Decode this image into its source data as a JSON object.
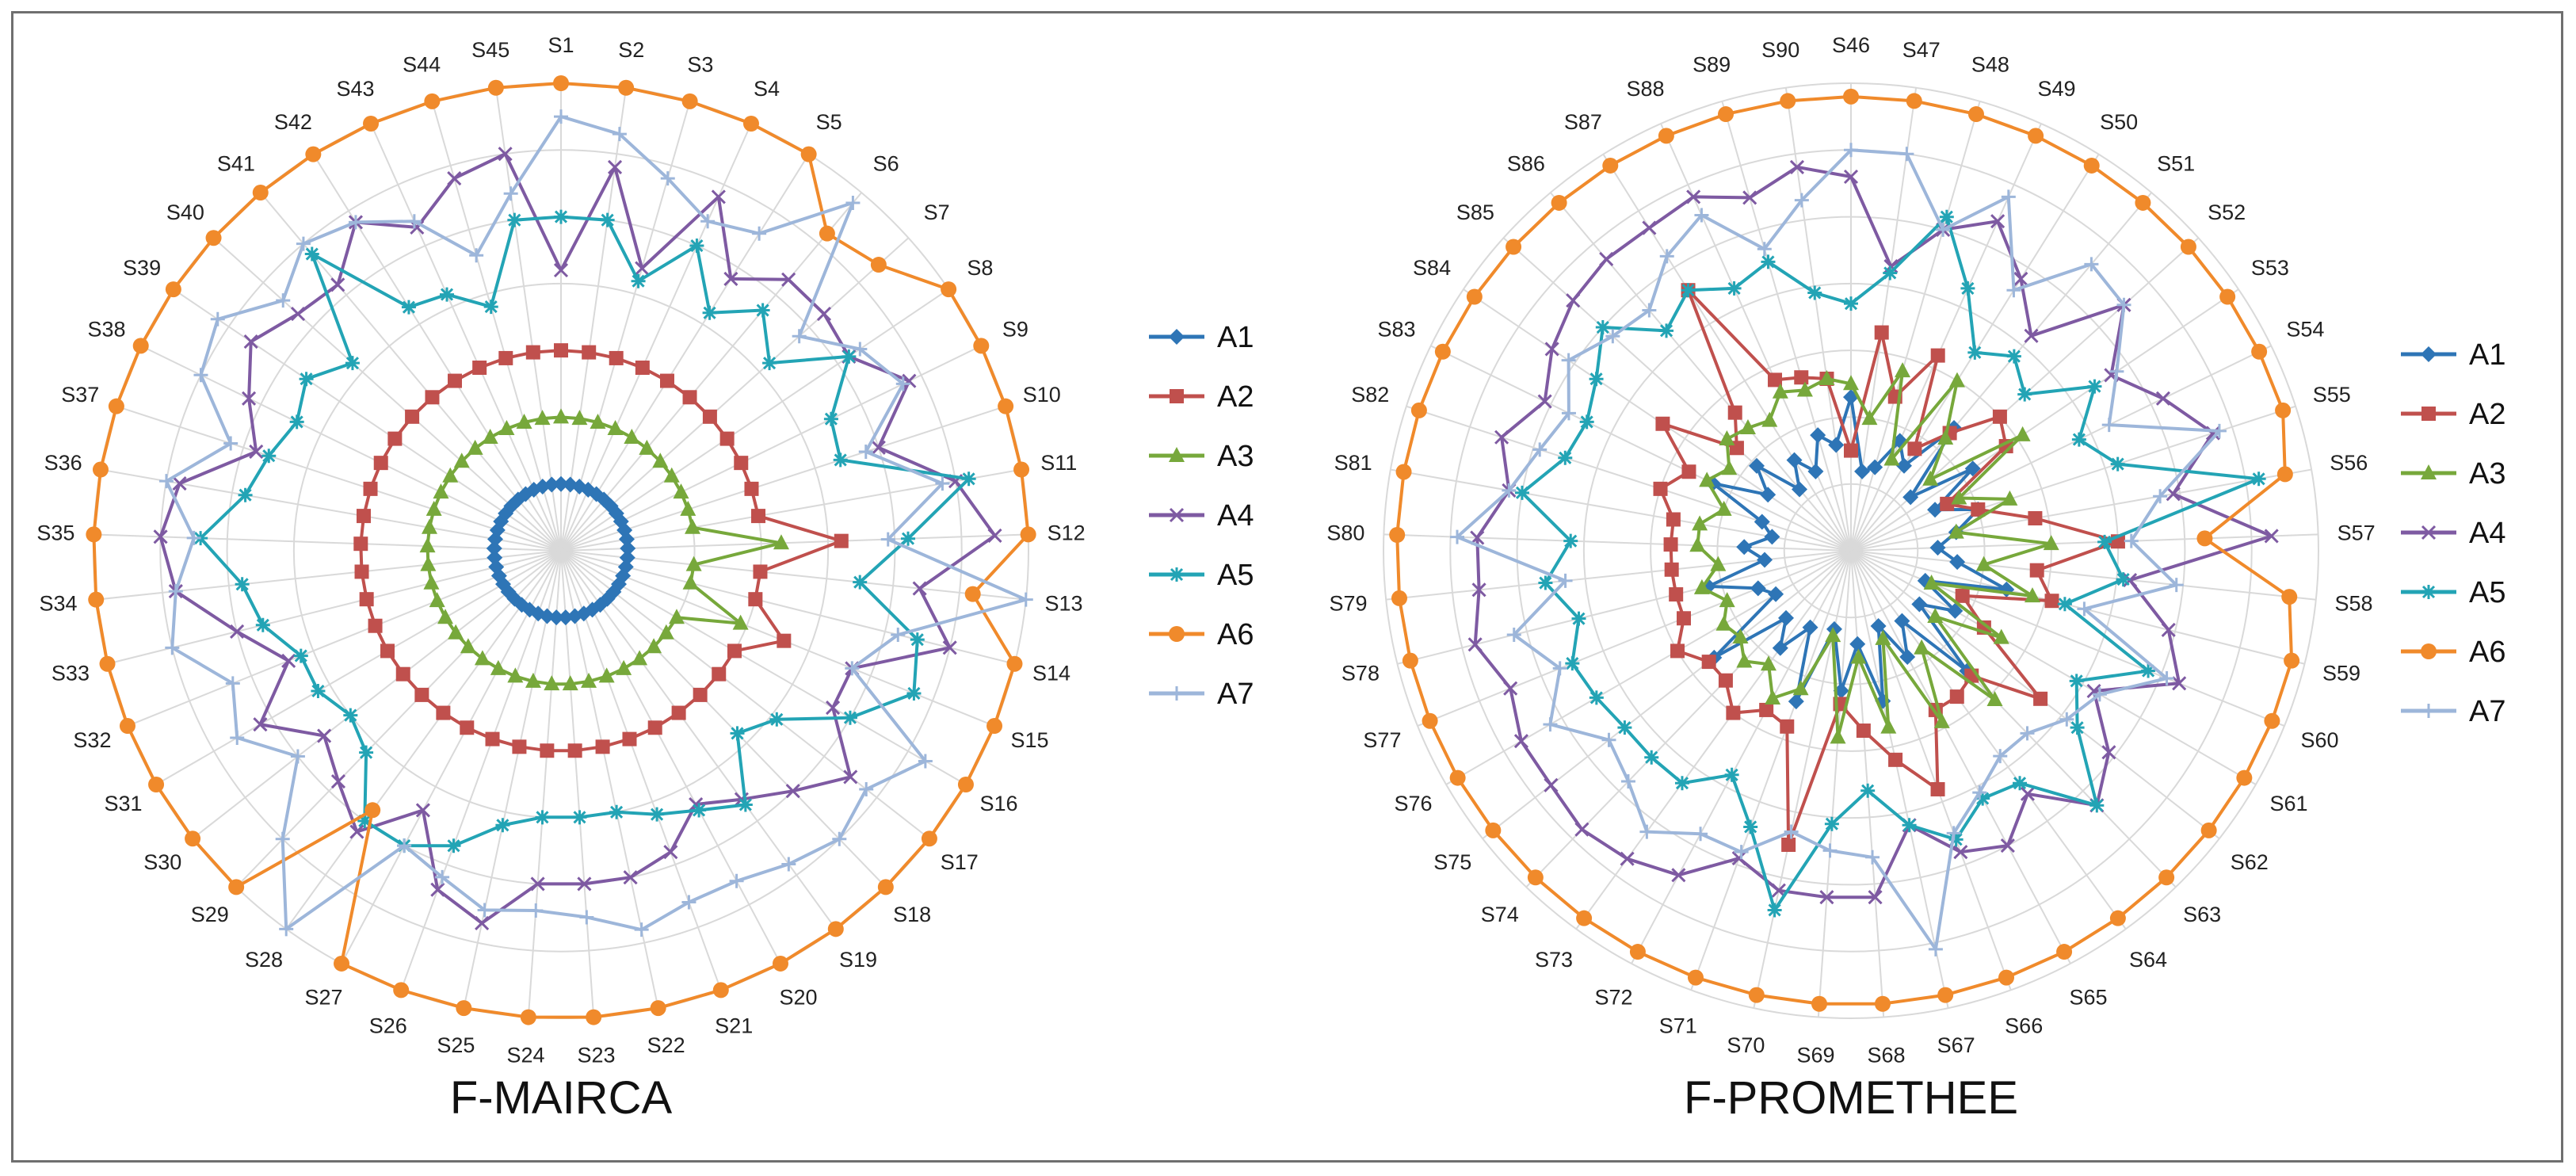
{
  "series_styles": [
    {
      "name": "A1",
      "color": "#2E75B6",
      "marker": "diamond"
    },
    {
      "name": "A2",
      "color": "#C0504D",
      "marker": "square"
    },
    {
      "name": "A3",
      "color": "#77A83B",
      "marker": "triangle"
    },
    {
      "name": "A4",
      "color": "#7E5AA2",
      "marker": "cross"
    },
    {
      "name": "A5",
      "color": "#23A4B5",
      "marker": "star"
    },
    {
      "name": "A6",
      "color": "#F08A2B",
      "marker": "circle"
    },
    {
      "name": "A7",
      "color": "#9DB6DA",
      "marker": "plus"
    }
  ],
  "chart_data": [
    {
      "type": "radar",
      "title": "F-MAIRCA",
      "categories": [
        "S1",
        "S2",
        "S3",
        "S4",
        "S5",
        "S6",
        "S7",
        "S8",
        "S9",
        "S10",
        "S11",
        "S12",
        "S13",
        "S14",
        "S15",
        "S16",
        "S17",
        "S18",
        "S19",
        "S20",
        "S21",
        "S22",
        "S23",
        "S24",
        "S25",
        "S26",
        "S27",
        "S28",
        "S29",
        "S30",
        "S31",
        "S32",
        "S33",
        "S34",
        "S35",
        "S36",
        "S37",
        "S38",
        "S39",
        "S40",
        "S41",
        "S42",
        "S43",
        "S44",
        "S45"
      ],
      "rlim": [
        0,
        7
      ],
      "grid": "circular, 7 rings",
      "legend": "right",
      "series": [
        {
          "name": "A1",
          "values": [
            1,
            1,
            1,
            1,
            1,
            1,
            1,
            1,
            1,
            1,
            1,
            1,
            1,
            1,
            1,
            1,
            1,
            1,
            1,
            1,
            1,
            1,
            1,
            1,
            1,
            1,
            1,
            1,
            1,
            1,
            1,
            1,
            1,
            1,
            1,
            1,
            1,
            1,
            1,
            1,
            1,
            1,
            1,
            1,
            1
          ]
        },
        {
          "name": "A2",
          "values": [
            3,
            3,
            3,
            3,
            3,
            3,
            3,
            3,
            3,
            3,
            3,
            4.2,
            3,
            3,
            3.6,
            3,
            3,
            3,
            3,
            3,
            3,
            3,
            3,
            3,
            3,
            3,
            3,
            3,
            3,
            3,
            3,
            3,
            3,
            3,
            3,
            3,
            3,
            3,
            3,
            3,
            3,
            3,
            3,
            3,
            3
          ]
        },
        {
          "name": "A3",
          "values": [
            2,
            2,
            2,
            2,
            2,
            2,
            2,
            2,
            2,
            2,
            2,
            3.3,
            2,
            2,
            2.9,
            2,
            2,
            2,
            2,
            2,
            2,
            2,
            2,
            2,
            2,
            2,
            2,
            2,
            2,
            2,
            2,
            2,
            2,
            2,
            2,
            2,
            2,
            2,
            2,
            2,
            2,
            2,
            2,
            2,
            2
          ]
        },
        {
          "name": "A4",
          "values": [
            4.2,
            5.8,
            4.4,
            5.8,
            4.8,
            5.3,
            5.3,
            5.2,
            5.8,
            5,
            6,
            6.5,
            5.4,
            6,
            4.7,
            4.7,
            5.5,
            5,
            4.6,
            4.3,
            4.8,
            5,
            5,
            5,
            5.7,
            5.4,
            4.4,
            5.2,
            4.8,
            4.5,
            5.2,
            4.4,
            5,
            5.8,
            6,
            5.8,
            4.8,
            5.2,
            5.6,
            5.3,
            5.2,
            5.8,
            5.3,
            5.8,
            6
          ]
        },
        {
          "name": "A5",
          "values": [
            5,
            5,
            4.2,
            5,
            4.2,
            4.7,
            4.2,
            5.2,
            4.5,
            4.4,
            6.2,
            5.2,
            4.5,
            5.5,
            5.7,
            5,
            4.1,
            3.8,
            4.7,
            4.4,
            4.2,
            4,
            4,
            4,
            4.2,
            4.7,
            5,
            5,
            4.2,
            4,
            4.2,
            4.2,
            4.6,
            4.8,
            5.4,
            4.8,
            4.6,
            4.4,
            4.6,
            4.2,
            5.8,
            4.3,
            4.2,
            3.8,
            5
          ]
        },
        {
          "name": "A6",
          "values": [
            7,
            7,
            7,
            7,
            7,
            6.2,
            6.4,
            7,
            7,
            7,
            7,
            7,
            6.2,
            7,
            7,
            7,
            7,
            7,
            7,
            7,
            7,
            7,
            7,
            7,
            7,
            7,
            7,
            4.8,
            7,
            7,
            7,
            7,
            7,
            7,
            7,
            7,
            7,
            7,
            7,
            7,
            7,
            7,
            7,
            7,
            7
          ]
        },
        {
          "name": "A7",
          "values": [
            6.5,
            6.3,
            5.8,
            5.4,
            5.6,
            6.8,
            4.8,
            5.4,
            5.7,
            4.8,
            5.8,
            4.9,
            7,
            5.2,
            4.7,
            6.3,
            5.8,
            6,
            5.8,
            5.6,
            5.6,
            5.8,
            5.5,
            5.4,
            5.5,
            5.2,
            5,
            7,
            6,
            5,
            5.6,
            5.3,
            6,
            5.8,
            5.5,
            6,
            5.2,
            6,
            6.2,
            5.6,
            6,
            5.8,
            5.4,
            4.6,
            5.4
          ]
        }
      ]
    },
    {
      "type": "radar",
      "title": "F-PROMETHEE",
      "categories": [
        "S46",
        "S47",
        "S48",
        "S49",
        "S50",
        "S51",
        "S52",
        "S53",
        "S54",
        "S55",
        "S56",
        "S57",
        "S58",
        "S59",
        "S60",
        "S61",
        "S62",
        "S63",
        "S64",
        "S65",
        "S66",
        "S67",
        "S68",
        "S69",
        "S70",
        "S71",
        "S72",
        "S73",
        "S74",
        "S75",
        "S76",
        "S77",
        "S78",
        "S79",
        "S80",
        "S81",
        "S82",
        "S83",
        "S84",
        "S85",
        "S86",
        "S87",
        "S88",
        "S89",
        "S90"
      ],
      "rlim": [
        0,
        7
      ],
      "grid": "circular, 7 rings",
      "legend": "right",
      "series": [
        {
          "name": "A1",
          "values": [
            2.3,
            1.2,
            1.3,
            1.8,
            1.5,
            2.4,
            1.2,
            2.2,
            1.4,
            2,
            1.6,
            1.3,
            1.6,
            2.4,
            1.2,
            1.8,
            1.3,
            2.5,
            1.3,
            1.8,
            1.2,
            2.3,
            1.4,
            2.1,
            1.2,
            2.4,
            1.3,
            1.8,
            1.4,
            2.6,
            1.3,
            1.5,
            2.2,
            1.3,
            1.6,
            1.2,
            1.4,
            2.3,
            1.5,
            1.9,
            1.2,
            1.6,
            1.3,
            1.8,
            1.6
          ]
        },
        {
          "name": "A2",
          "values": [
            1.5,
            3.3,
            2.4,
            3.2,
            1.8,
            2.3,
            3,
            2.8,
            1.6,
            2,
            2.8,
            4,
            2.8,
            3.1,
            1.8,
            2.3,
            3.6,
            2.6,
            2.7,
            2.7,
            3.8,
            3.2,
            2.7,
            2.3,
            4.5,
            2.8,
            2.7,
            3,
            2.7,
            2.7,
            3,
            2.7,
            2.7,
            2.7,
            2.7,
            2.7,
            3,
            2.7,
            3.4,
            2.3,
            2.7,
            4.6,
            2.8,
            2.7,
            2.6
          ]
        },
        {
          "name": "A3",
          "values": [
            2.5,
            2,
            2.8,
            1.5,
            3,
            2.2,
            1.6,
            3.1,
            1.8,
            2.5,
            1.6,
            3,
            2,
            2.8,
            1.3,
            2.6,
            1.6,
            3.1,
            1.8,
            2.9,
            1.4,
            2.7,
            1.6,
            2.8,
            1.3,
            2.2,
            2.5,
            2.1,
            2.3,
            2.1,
            2.2,
            2,
            2.3,
            2,
            2.3,
            2.3,
            2,
            2.4,
            2.2,
            2.5,
            2.4,
            2.3,
            2.6,
            2.5,
            2.6
          ]
        },
        {
          "name": "A4",
          "values": [
            5.6,
            4.3,
            5,
            5.4,
            4.8,
            4.2,
            5.5,
            4.7,
            5.2,
            5.7,
            4.9,
            6.3,
            4.2,
            4.9,
            5.3,
            4.2,
            4.9,
            5.3,
            4.5,
            5,
            4.8,
            4.2,
            5.2,
            5.2,
            5.2,
            4.9,
            5.5,
            5.7,
            5.8,
            5.7,
            5.7,
            5.5,
            5.8,
            5.6,
            5.6,
            5.2,
            5.5,
            5.1,
            5.4,
            5.6,
            5.7,
            5.7,
            5.8,
            5.5,
            5.8
          ]
        },
        {
          "name": "A5",
          "values": [
            3.7,
            4.2,
            5.2,
            4.3,
            3.5,
            3.8,
            3.5,
            4.4,
            3.8,
            4.2,
            6.2,
            3.8,
            4.1,
            3.3,
            4.8,
            3.9,
            4.3,
            5.3,
            4.3,
            4.2,
            4.6,
            4.2,
            3.6,
            4.1,
            5.5,
            4.4,
            3.8,
            4.3,
            4.3,
            4.3,
            4.4,
            4.5,
            4.2,
            4.6,
            4.2,
            5,
            4.5,
            4.4,
            4.6,
            5,
            4.3,
            4.6,
            4.3,
            4.5,
            3.9
          ]
        },
        {
          "name": "A6",
          "values": [
            6.8,
            6.8,
            6.8,
            6.8,
            6.8,
            6.8,
            6.8,
            6.8,
            6.8,
            6.8,
            6.6,
            5.3,
            6.6,
            6.8,
            6.8,
            6.8,
            6.8,
            6.8,
            6.8,
            6.8,
            6.8,
            6.8,
            6.8,
            6.8,
            6.8,
            6.8,
            6.8,
            6.8,
            6.8,
            6.8,
            6.8,
            6.8,
            6.8,
            6.8,
            6.8,
            6.8,
            6.8,
            6.8,
            6.8,
            6.8,
            6.8,
            6.8,
            6.8,
            6.8,
            6.8
          ]
        },
        {
          "name": "A7",
          "values": [
            6,
            6,
            5,
            5.8,
            4.6,
            5.6,
            5.5,
            4.8,
            4.3,
            5.8,
            4.7,
            4.2,
            4.9,
            3.6,
            5.1,
            4.3,
            4.1,
            3.8,
            3.8,
            4.1,
            4.5,
            6.1,
            4.6,
            4.5,
            4.3,
            4.8,
            4.8,
            5.2,
            4.8,
            4.6,
            5.2,
            4.7,
            5.2,
            4.3,
            5.9,
            5.2,
            4.9,
            4.7,
            5.1,
            4.8,
            4.7,
            5.2,
            5.5,
            4.7,
            5.3
          ]
        }
      ]
    }
  ]
}
